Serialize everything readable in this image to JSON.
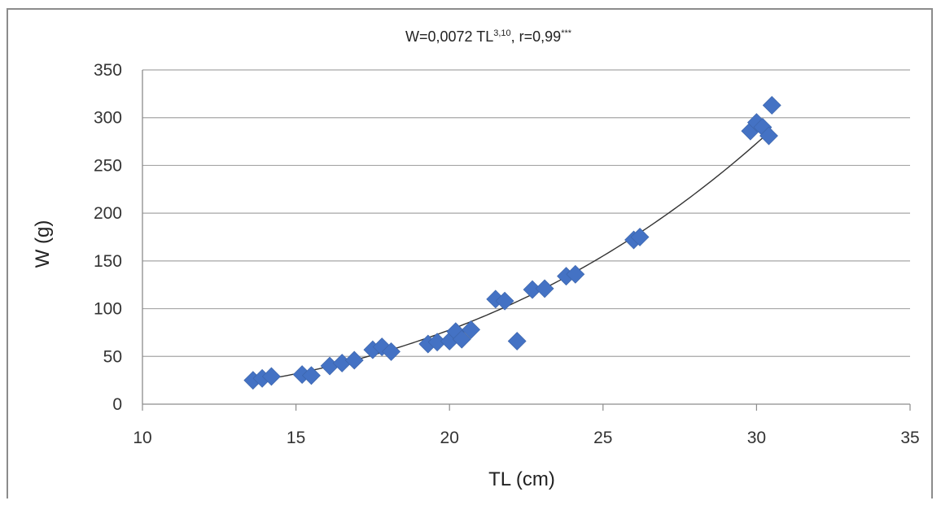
{
  "chart_data": {
    "type": "scatter",
    "title": {
      "parts": [
        {
          "text": "W=0,0072 TL",
          "sup": false
        },
        {
          "text": "3,10",
          "sup": true
        },
        {
          "text": ",  r=0,99",
          "sup": false
        },
        {
          "text": "***",
          "sup": true
        }
      ]
    },
    "xlabel": "TL (cm)",
    "ylabel": "W (g)",
    "xlim": [
      10,
      35
    ],
    "ylim": [
      0,
      350
    ],
    "x_ticks": [
      10,
      15,
      20,
      25,
      30,
      35
    ],
    "y_ticks": [
      0,
      50,
      100,
      150,
      200,
      250,
      300,
      350
    ],
    "grid": "horizontal",
    "legend": "none",
    "marker": "diamond",
    "colors": {
      "marker": "#4472C4",
      "trend": "#333333",
      "grid": "#a6a6a6",
      "axis": "#8c8c8c"
    },
    "trendline": {
      "type": "power",
      "a": 0.0072,
      "b": 3.1,
      "x_range": [
        13.6,
        30.5
      ]
    },
    "points": [
      {
        "x": 13.6,
        "y": 25
      },
      {
        "x": 13.9,
        "y": 27
      },
      {
        "x": 14.2,
        "y": 29
      },
      {
        "x": 15.2,
        "y": 31
      },
      {
        "x": 15.5,
        "y": 30
      },
      {
        "x": 16.1,
        "y": 40
      },
      {
        "x": 16.5,
        "y": 43
      },
      {
        "x": 16.9,
        "y": 46
      },
      {
        "x": 17.5,
        "y": 57
      },
      {
        "x": 17.8,
        "y": 60
      },
      {
        "x": 18.1,
        "y": 55
      },
      {
        "x": 19.3,
        "y": 63
      },
      {
        "x": 19.6,
        "y": 65
      },
      {
        "x": 20.0,
        "y": 66
      },
      {
        "x": 20.2,
        "y": 76
      },
      {
        "x": 20.4,
        "y": 68
      },
      {
        "x": 20.7,
        "y": 78
      },
      {
        "x": 21.5,
        "y": 110
      },
      {
        "x": 21.8,
        "y": 108
      },
      {
        "x": 22.2,
        "y": 66
      },
      {
        "x": 22.7,
        "y": 120
      },
      {
        "x": 23.1,
        "y": 121
      },
      {
        "x": 23.8,
        "y": 134
      },
      {
        "x": 24.1,
        "y": 136
      },
      {
        "x": 26.0,
        "y": 172
      },
      {
        "x": 26.2,
        "y": 175
      },
      {
        "x": 29.8,
        "y": 286
      },
      {
        "x": 30.0,
        "y": 295
      },
      {
        "x": 30.2,
        "y": 290
      },
      {
        "x": 30.4,
        "y": 281
      },
      {
        "x": 30.5,
        "y": 313
      }
    ]
  }
}
